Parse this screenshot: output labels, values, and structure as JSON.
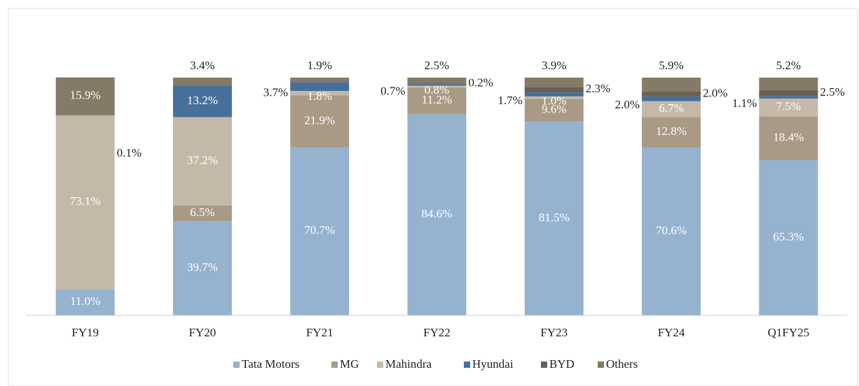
{
  "chart_data": {
    "type": "stacked_bar",
    "categories": [
      "FY19",
      "FY20",
      "FY21",
      "FY22",
      "FY23",
      "FY24",
      "Q1FY25"
    ],
    "ylim": [
      0,
      100
    ],
    "series": [
      {
        "name": "Tata Motors",
        "color": "#95b3cf",
        "values": [
          11.0,
          39.7,
          70.7,
          84.6,
          81.5,
          70.6,
          65.3
        ],
        "value_labels": [
          "11.0%",
          "39.7%",
          "70.7%",
          "84.6%",
          "81.5%",
          "70.6%",
          "65.3%"
        ]
      },
      {
        "name": "MG",
        "color": "#a89a85",
        "values": [
          null,
          6.5,
          21.9,
          11.2,
          9.6,
          12.8,
          18.4
        ],
        "value_labels": [
          null,
          "6.5%",
          "21.9%",
          "11.2%",
          "9.6%",
          "12.8%",
          "18.4%"
        ]
      },
      {
        "name": "Mahindra",
        "color": "#c4b9a8",
        "values": [
          73.1,
          37.2,
          1.8,
          0.8,
          1.0,
          6.7,
          7.5
        ],
        "value_labels": [
          "73.1%",
          "37.2%",
          "1.8%",
          "0.8%",
          "1.0%",
          "6.7%",
          "7.5%"
        ]
      },
      {
        "name": "Hyundai",
        "color": "#46709a",
        "values": [
          null,
          13.2,
          3.7,
          0.7,
          1.7,
          2.0,
          1.1
        ],
        "value_labels": [
          null,
          "13.2%",
          "3.7%",
          "0.7%",
          "1.7%",
          "2.0%",
          "1.1%"
        ]
      },
      {
        "name": "BYD",
        "color": "#6b5f53",
        "values": [
          0.1,
          null,
          null,
          0.2,
          2.3,
          2.0,
          2.5
        ],
        "value_labels": [
          "0.1%",
          null,
          null,
          "0.2%",
          "2.3%",
          "2.0%",
          "2.5%"
        ]
      },
      {
        "name": "Others",
        "color": "#857a66",
        "values": [
          15.9,
          3.4,
          1.9,
          2.5,
          3.9,
          5.9,
          5.2
        ],
        "value_labels": [
          "15.9%",
          "3.4%",
          "1.9%",
          "2.5%",
          "3.9%",
          "5.9%",
          "5.2%"
        ]
      }
    ]
  }
}
